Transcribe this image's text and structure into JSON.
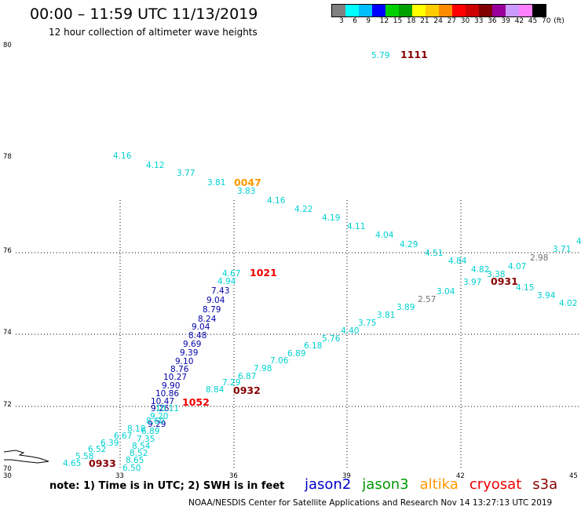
{
  "title": "00:00 – 11:59 UTC 11/13/2019",
  "subtitle": "12 hour collection of altimeter wave heights",
  "legend": {
    "colors": [
      "#808080",
      "#00ffff",
      "#00bfff",
      "#0000ff",
      "#00d000",
      "#00a000",
      "#ffff00",
      "#ffcc00",
      "#ff8c00",
      "#ff0000",
      "#cc0000",
      "#800000",
      "#990099",
      "#cc99ff",
      "#ff80ff",
      "#000000"
    ],
    "labels": [
      "3",
      "6",
      "9",
      "12",
      "15",
      "18",
      "21",
      "24",
      "27",
      "30",
      "33",
      "36",
      "39",
      "42",
      "45",
      "70",
      "(ft)"
    ]
  },
  "axes": {
    "x_ticks": [
      "30",
      "33",
      "36",
      "39",
      "42",
      "45"
    ],
    "y_ticks": [
      "80",
      "78",
      "76",
      "74",
      "72",
      "70"
    ]
  },
  "note": "note:  1) Time is in UTC;  2) SWH is in feet",
  "satellites": [
    {
      "name": "jason2",
      "color": "#0000cc"
    },
    {
      "name": "jason3",
      "color": "#009900"
    },
    {
      "name": "altika",
      "color": "#ff9900"
    },
    {
      "name": "cryosat",
      "color": "#ee0000"
    },
    {
      "name": "s3a",
      "color": "#880000"
    }
  ],
  "footer": "NOAA/NESDIS Center for Satellite Applications and Research    Nov 14 13:27:13 UTC 2019",
  "colors": {
    "cyan": "#00d0d0",
    "navy": "#0000aa",
    "gray": "#707070",
    "orange": "#ff9900",
    "red": "#ee0000",
    "maroon": "#880000"
  },
  "tracks": {
    "cyan_upper": [
      "4.16",
      "4.12",
      "3.77",
      "3.81",
      "3.83",
      "4.16",
      "4.22",
      "4.19",
      "4.11",
      "4.04",
      "4.29",
      "4.51",
      "4.84",
      "4.82",
      "4.07",
      "3.71",
      "4"
    ],
    "navy_col": [
      "4.67",
      "4.94",
      "7.43",
      "9.04",
      "8.79",
      "8.24",
      "9.04",
      "8.48",
      "9.69",
      "9.39",
      "9.10",
      "8.76",
      "10.27",
      "9.90",
      "10.86",
      "10.47",
      "9.26",
      "9.29"
    ],
    "cyan_lower": [
      "4.65",
      "5.58",
      "6.52",
      "6.39",
      "6.67",
      "8.18",
      "6.89",
      "7.35",
      "8.54",
      "8.52",
      "8.65",
      "6.50",
      "8.84",
      "7.29",
      "6.87",
      "7.98",
      "7.06",
      "6.89",
      "6.18",
      "5.76",
      "4.40",
      "3.75",
      "3.81",
      "3.89",
      "3.04",
      "3.97",
      "3.38",
      "4.15",
      "3.94",
      "4.02"
    ],
    "gray": [
      "2.57",
      "2.98"
    ],
    "top": [
      "5.79"
    ],
    "times": {
      "maroon": [
        "1111",
        "0932",
        "0931",
        "0933"
      ],
      "orange": [
        "0047"
      ],
      "red": [
        "1021",
        "1052"
      ]
    }
  }
}
